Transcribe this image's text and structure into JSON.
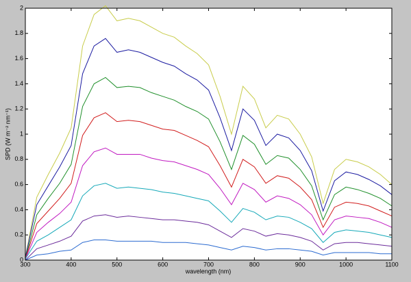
{
  "chart_data": {
    "type": "line",
    "xlabel": "wavelength (nm)",
    "ylabel": "SPD (W m⁻² nm⁻¹)",
    "x": [
      300,
      325,
      350,
      375,
      400,
      425,
      450,
      475,
      500,
      525,
      550,
      575,
      600,
      625,
      650,
      675,
      700,
      725,
      750,
      775,
      800,
      825,
      850,
      875,
      900,
      925,
      950,
      975,
      1000,
      1025,
      1050,
      1075,
      1100
    ],
    "series": [
      {
        "color": "#c8cc4a",
        "values": [
          0.02,
          0.5,
          0.68,
          0.85,
          1.05,
          1.7,
          1.95,
          2.02,
          1.9,
          1.92,
          1.9,
          1.85,
          1.8,
          1.77,
          1.7,
          1.64,
          1.55,
          1.3,
          1.0,
          1.38,
          1.28,
          1.05,
          1.15,
          1.12,
          1.0,
          0.82,
          0.45,
          0.72,
          0.8,
          0.78,
          0.74,
          0.68,
          0.6
        ]
      },
      {
        "color": "#1a1aa0",
        "values": [
          0.02,
          0.44,
          0.59,
          0.74,
          0.91,
          1.48,
          1.7,
          1.76,
          1.65,
          1.67,
          1.65,
          1.61,
          1.57,
          1.54,
          1.48,
          1.43,
          1.35,
          1.13,
          0.87,
          1.2,
          1.11,
          0.91,
          1.0,
          0.97,
          0.87,
          0.71,
          0.39,
          0.63,
          0.7,
          0.68,
          0.64,
          0.59,
          0.52
        ]
      },
      {
        "color": "#1f8f2a",
        "values": [
          0.01,
          0.36,
          0.49,
          0.61,
          0.76,
          1.22,
          1.4,
          1.45,
          1.37,
          1.38,
          1.37,
          1.33,
          1.3,
          1.27,
          1.22,
          1.18,
          1.12,
          0.94,
          0.72,
          0.99,
          0.92,
          0.76,
          0.83,
          0.81,
          0.72,
          0.59,
          0.32,
          0.52,
          0.58,
          0.56,
          0.53,
          0.49,
          0.43
        ]
      },
      {
        "color": "#d11c1c",
        "values": [
          0.01,
          0.29,
          0.39,
          0.49,
          0.61,
          0.99,
          1.13,
          1.17,
          1.1,
          1.11,
          1.1,
          1.07,
          1.04,
          1.03,
          0.99,
          0.95,
          0.9,
          0.75,
          0.58,
          0.8,
          0.74,
          0.61,
          0.67,
          0.65,
          0.58,
          0.48,
          0.26,
          0.42,
          0.46,
          0.45,
          0.43,
          0.39,
          0.35
        ]
      },
      {
        "color": "#c018c0",
        "values": [
          0.01,
          0.22,
          0.3,
          0.37,
          0.46,
          0.75,
          0.86,
          0.89,
          0.84,
          0.84,
          0.84,
          0.81,
          0.79,
          0.78,
          0.75,
          0.72,
          0.68,
          0.57,
          0.44,
          0.61,
          0.56,
          0.46,
          0.51,
          0.49,
          0.44,
          0.36,
          0.2,
          0.32,
          0.35,
          0.34,
          0.33,
          0.3,
          0.26
        ]
      },
      {
        "color": "#14a8b8",
        "values": [
          0.01,
          0.15,
          0.2,
          0.26,
          0.32,
          0.51,
          0.59,
          0.61,
          0.57,
          0.58,
          0.57,
          0.56,
          0.54,
          0.53,
          0.51,
          0.49,
          0.47,
          0.39,
          0.3,
          0.41,
          0.38,
          0.32,
          0.35,
          0.34,
          0.3,
          0.25,
          0.14,
          0.22,
          0.24,
          0.23,
          0.22,
          0.2,
          0.18
        ]
      },
      {
        "color": "#6a2a9a",
        "values": [
          0,
          0.09,
          0.12,
          0.15,
          0.19,
          0.31,
          0.35,
          0.36,
          0.34,
          0.35,
          0.34,
          0.33,
          0.32,
          0.32,
          0.31,
          0.3,
          0.28,
          0.23,
          0.18,
          0.25,
          0.23,
          0.19,
          0.21,
          0.2,
          0.18,
          0.15,
          0.08,
          0.13,
          0.14,
          0.14,
          0.13,
          0.12,
          0.11
        ]
      },
      {
        "color": "#2a6ad0",
        "values": [
          0,
          0.04,
          0.05,
          0.07,
          0.08,
          0.14,
          0.16,
          0.16,
          0.15,
          0.15,
          0.15,
          0.15,
          0.14,
          0.14,
          0.14,
          0.13,
          0.12,
          0.1,
          0.08,
          0.11,
          0.1,
          0.08,
          0.09,
          0.09,
          0.08,
          0.07,
          0.04,
          0.06,
          0.06,
          0.06,
          0.06,
          0.05,
          0.05
        ]
      }
    ],
    "xlim": [
      300,
      1100
    ],
    "xticks": [
      300,
      400,
      500,
      600,
      700,
      800,
      900,
      1000,
      1100
    ],
    "ylim": [
      0,
      2
    ],
    "yticks": [
      0,
      0.2,
      0.4,
      0.6,
      0.8,
      1,
      1.2,
      1.4,
      1.6,
      1.8,
      2
    ],
    "grid": false
  }
}
